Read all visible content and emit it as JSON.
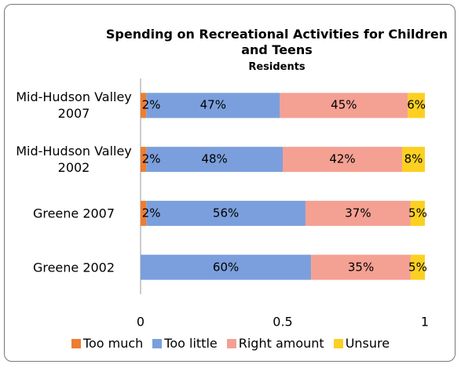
{
  "chart_data": {
    "type": "stacked-bar-horizontal",
    "title": "Spending on Recreational Activities for Children and Teens",
    "subtitle": "Residents",
    "categories": [
      "Mid-Hudson Valley 2007",
      "Mid-Hudson Valley 2002",
      "Greene 2007",
      "Greene 2002"
    ],
    "series": [
      {
        "name": "Too much",
        "color": "#ed7d31",
        "values": [
          0.02,
          0.02,
          0.02,
          0
        ],
        "value_labels": [
          "2%",
          "2%",
          "2%",
          null
        ]
      },
      {
        "name": "Too little",
        "color": "#7b9fdc",
        "values": [
          0.47,
          0.48,
          0.56,
          0.6
        ],
        "value_labels": [
          "47%",
          "48%",
          "56%",
          "60%"
        ]
      },
      {
        "name": "Right amount",
        "color": "#f4a093",
        "values": [
          0.45,
          0.42,
          0.37,
          0.35
        ],
        "value_labels": [
          "45%",
          "42%",
          "37%",
          "35%"
        ]
      },
      {
        "name": "Unsure",
        "color": "#fcd021",
        "values": [
          0.06,
          0.08,
          0.05,
          0.05
        ],
        "value_labels": [
          "6%",
          "8%",
          "5%",
          "5%"
        ]
      }
    ],
    "xlim": [
      0,
      1
    ],
    "xticks": [
      0,
      0.5,
      1
    ],
    "legend": "bottom"
  }
}
